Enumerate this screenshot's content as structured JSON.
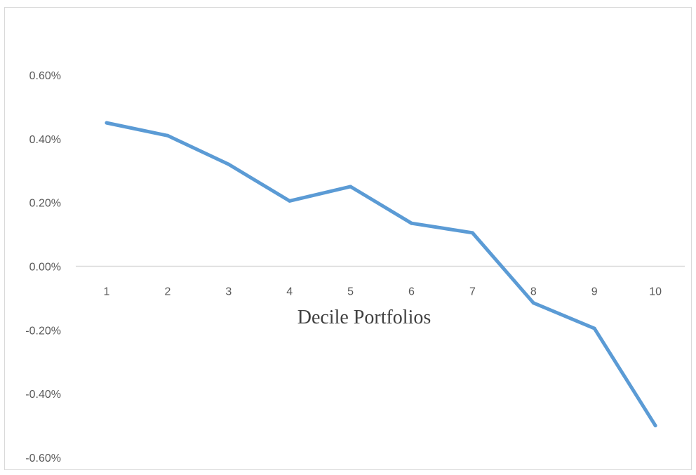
{
  "chart_data": {
    "type": "line",
    "title": "",
    "xlabel": "Decile Portfolios",
    "ylabel": "",
    "categories": [
      "1",
      "2",
      "3",
      "4",
      "5",
      "6",
      "7",
      "8",
      "9",
      "10"
    ],
    "series": [
      {
        "values": [
          0.45,
          0.41,
          0.32,
          0.205,
          0.25,
          0.135,
          0.105,
          -0.115,
          -0.195,
          -0.5
        ],
        "color": "#5b9bd5"
      }
    ],
    "yticks": [
      "0.60%",
      "0.40%",
      "0.20%",
      "0.00%",
      "-0.20%",
      "-0.40%",
      "-0.60%"
    ],
    "ytick_values": [
      0.6,
      0.4,
      0.2,
      0.0,
      -0.2,
      -0.4,
      -0.6
    ],
    "ylim": [
      -0.6,
      0.6
    ],
    "y_unit": "%",
    "grid": false,
    "legend": "none",
    "axis_color": "#d9d9d9"
  }
}
